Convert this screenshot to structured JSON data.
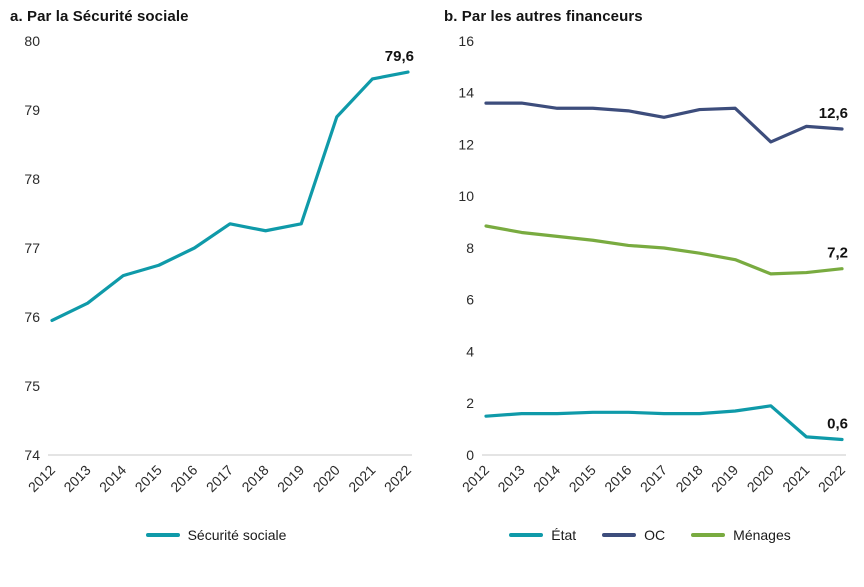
{
  "chart_data": [
    {
      "type": "line",
      "title": "a. Par la Sécurité sociale",
      "categories": [
        "2012",
        "2013",
        "2014",
        "2015",
        "2016",
        "2017",
        "2018",
        "2019",
        "2020",
        "2021",
        "2022"
      ],
      "ylim": [
        74,
        80
      ],
      "ytick_step": 1,
      "xlabel": "",
      "ylabel": "",
      "grid": false,
      "legend_position": "bottom",
      "series": [
        {
          "name": "Sécurité sociale",
          "color": "#0f9aa9",
          "values": [
            75.95,
            76.2,
            76.6,
            76.75,
            77.0,
            77.35,
            77.25,
            77.35,
            78.9,
            79.45,
            79.55
          ],
          "end_label": "79,6"
        }
      ]
    },
    {
      "type": "line",
      "title": "b. Par les autres financeurs",
      "categories": [
        "2012",
        "2013",
        "2014",
        "2015",
        "2016",
        "2017",
        "2018",
        "2019",
        "2020",
        "2021",
        "2022"
      ],
      "ylim": [
        0,
        16
      ],
      "ytick_step": 2,
      "xlabel": "",
      "ylabel": "",
      "grid": false,
      "legend_position": "bottom",
      "series": [
        {
          "name": "État",
          "color": "#0f9aa9",
          "values": [
            1.5,
            1.6,
            1.6,
            1.65,
            1.65,
            1.6,
            1.6,
            1.7,
            1.9,
            0.7,
            0.6
          ],
          "end_label": "0,6"
        },
        {
          "name": "OC",
          "color": "#3d4d7c",
          "values": [
            13.6,
            13.6,
            13.4,
            13.4,
            13.3,
            13.05,
            13.35,
            13.4,
            12.1,
            12.7,
            12.6
          ],
          "end_label": "12,6"
        },
        {
          "name": "Ménages",
          "color": "#79ab40",
          "values": [
            8.85,
            8.6,
            8.45,
            8.3,
            8.1,
            8.0,
            7.8,
            7.55,
            7.0,
            7.05,
            7.2
          ],
          "end_label": "7,2"
        }
      ]
    }
  ]
}
